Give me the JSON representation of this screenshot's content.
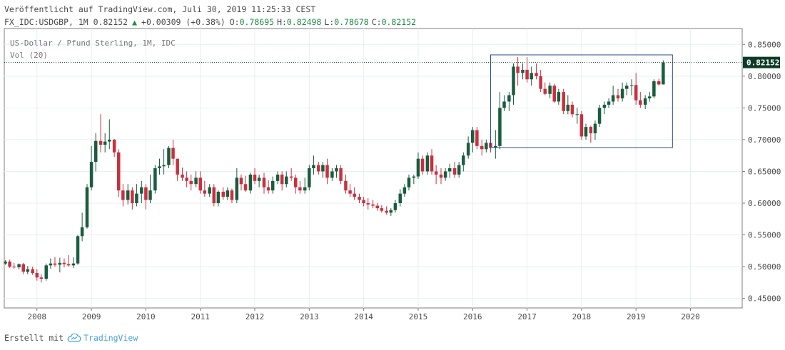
{
  "header": {
    "published": "Veröffentlicht auf TradingView.com, Juli 30, 2019 11:25:33 CEST",
    "symbol_line": "FX_IDC:USDGBP, 1M 0.82152",
    "change": "+0.00309 (+0.38%)",
    "change_direction": "up",
    "o_label": "O:",
    "o_value": "0.78695",
    "h_label": "H:",
    "h_value": "0.82498",
    "l_label": "L:",
    "l_value": "0.78678",
    "c_label": "C:",
    "c_value": "0.82152"
  },
  "legend": {
    "series_title": "US-Dollar / Pfund Sterling, 1M, IDC",
    "volume": "Vol (20)"
  },
  "footer": {
    "created_with": "Erstellt mit",
    "brand": "TradingView",
    "brand_icon": "tradingview-cloud-icon"
  },
  "colors": {
    "up": "#1a5c3f",
    "down": "#c9303d",
    "grid": "#e8eef3",
    "axis": "#4a4a4a",
    "last_price_bg": "#0d3b2a",
    "box": "#2a4c8f"
  },
  "chart_data": {
    "type": "candlestick",
    "interval": "1M",
    "y_ticks": [
      "0.85000",
      "0.80000",
      "0.75000",
      "0.70000",
      "0.65000",
      "0.60000",
      "0.55000",
      "0.50000",
      "0.45000"
    ],
    "x_ticks": [
      "2008",
      "2009",
      "2010",
      "2011",
      "2012",
      "2013",
      "2014",
      "2015",
      "2016",
      "2017",
      "2018",
      "2019",
      "2020"
    ],
    "ylim": [
      0.435,
      0.875
    ],
    "last_price": "0.82152",
    "grid": true,
    "annotation_box": {
      "x_start": 2016.33,
      "x_end": 2019.67,
      "y_low": 0.6875,
      "y_high": 0.8335
    },
    "candles": [
      [
        2007.42,
        0.505,
        0.51,
        0.503,
        0.508
      ],
      [
        2007.5,
        0.508,
        0.511,
        0.498,
        0.5
      ],
      [
        2007.58,
        0.5,
        0.506,
        0.497,
        0.499
      ],
      [
        2007.67,
        0.499,
        0.505,
        0.496,
        0.504
      ],
      [
        2007.75,
        0.504,
        0.506,
        0.488,
        0.492
      ],
      [
        2007.83,
        0.492,
        0.501,
        0.488,
        0.496
      ],
      [
        2007.92,
        0.496,
        0.5,
        0.487,
        0.49
      ],
      [
        2008.0,
        0.49,
        0.496,
        0.478,
        0.483
      ],
      [
        2008.08,
        0.483,
        0.488,
        0.475,
        0.481
      ],
      [
        2008.17,
        0.481,
        0.505,
        0.478,
        0.502
      ],
      [
        2008.25,
        0.502,
        0.513,
        0.497,
        0.505
      ],
      [
        2008.33,
        0.505,
        0.515,
        0.5,
        0.503
      ],
      [
        2008.42,
        0.503,
        0.514,
        0.491,
        0.506
      ],
      [
        2008.5,
        0.506,
        0.513,
        0.499,
        0.504
      ],
      [
        2008.58,
        0.504,
        0.518,
        0.5,
        0.502
      ],
      [
        2008.67,
        0.502,
        0.515,
        0.498,
        0.505
      ],
      [
        2008.75,
        0.505,
        0.55,
        0.503,
        0.548
      ],
      [
        2008.83,
        0.548,
        0.585,
        0.54,
        0.562
      ],
      [
        2008.92,
        0.562,
        0.63,
        0.56,
        0.625
      ],
      [
        2009.0,
        0.625,
        0.69,
        0.62,
        0.665
      ],
      [
        2009.08,
        0.665,
        0.71,
        0.65,
        0.698
      ],
      [
        2009.17,
        0.698,
        0.74,
        0.68,
        0.692
      ],
      [
        2009.25,
        0.692,
        0.71,
        0.68,
        0.697
      ],
      [
        2009.33,
        0.697,
        0.732,
        0.685,
        0.7
      ],
      [
        2009.42,
        0.7,
        0.701,
        0.673,
        0.68
      ],
      [
        2009.5,
        0.68,
        0.685,
        0.61,
        0.62
      ],
      [
        2009.58,
        0.62,
        0.63,
        0.595,
        0.605
      ],
      [
        2009.67,
        0.605,
        0.63,
        0.598,
        0.62
      ],
      [
        2009.75,
        0.62,
        0.625,
        0.59,
        0.6
      ],
      [
        2009.83,
        0.6,
        0.63,
        0.595,
        0.615
      ],
      [
        2009.92,
        0.615,
        0.635,
        0.6,
        0.625
      ],
      [
        2010.0,
        0.625,
        0.63,
        0.59,
        0.605
      ],
      [
        2010.08,
        0.605,
        0.645,
        0.6,
        0.62
      ],
      [
        2010.17,
        0.62,
        0.66,
        0.615,
        0.655
      ],
      [
        2010.25,
        0.655,
        0.67,
        0.645,
        0.658
      ],
      [
        2010.33,
        0.658,
        0.685,
        0.645,
        0.66
      ],
      [
        2010.42,
        0.66,
        0.69,
        0.655,
        0.687
      ],
      [
        2010.5,
        0.687,
        0.7,
        0.66,
        0.67
      ],
      [
        2010.58,
        0.67,
        0.67,
        0.635,
        0.645
      ],
      [
        2010.67,
        0.645,
        0.656,
        0.635,
        0.64
      ],
      [
        2010.75,
        0.64,
        0.65,
        0.625,
        0.635
      ],
      [
        2010.83,
        0.635,
        0.645,
        0.62,
        0.63
      ],
      [
        2010.92,
        0.63,
        0.65,
        0.625,
        0.64
      ],
      [
        2011.0,
        0.64,
        0.65,
        0.615,
        0.62
      ],
      [
        2011.08,
        0.62,
        0.635,
        0.61,
        0.615
      ],
      [
        2011.17,
        0.615,
        0.63,
        0.61,
        0.625
      ],
      [
        2011.25,
        0.625,
        0.63,
        0.595,
        0.6
      ],
      [
        2011.33,
        0.6,
        0.62,
        0.595,
        0.618
      ],
      [
        2011.42,
        0.618,
        0.625,
        0.605,
        0.61
      ],
      [
        2011.5,
        0.61,
        0.625,
        0.605,
        0.62
      ],
      [
        2011.58,
        0.62,
        0.623,
        0.6,
        0.605
      ],
      [
        2011.67,
        0.605,
        0.655,
        0.6,
        0.64
      ],
      [
        2011.75,
        0.64,
        0.645,
        0.62,
        0.63
      ],
      [
        2011.83,
        0.63,
        0.643,
        0.618,
        0.62
      ],
      [
        2011.92,
        0.62,
        0.648,
        0.615,
        0.645
      ],
      [
        2012.0,
        0.645,
        0.655,
        0.63,
        0.635
      ],
      [
        2012.08,
        0.635,
        0.645,
        0.625,
        0.64
      ],
      [
        2012.17,
        0.64,
        0.648,
        0.615,
        0.625
      ],
      [
        2012.25,
        0.625,
        0.636,
        0.615,
        0.62
      ],
      [
        2012.33,
        0.62,
        0.642,
        0.615,
        0.635
      ],
      [
        2012.42,
        0.635,
        0.65,
        0.63,
        0.645
      ],
      [
        2012.5,
        0.645,
        0.65,
        0.62,
        0.63
      ],
      [
        2012.58,
        0.63,
        0.65,
        0.625,
        0.642
      ],
      [
        2012.67,
        0.642,
        0.655,
        0.635,
        0.64
      ],
      [
        2012.75,
        0.64,
        0.645,
        0.615,
        0.625
      ],
      [
        2012.83,
        0.625,
        0.635,
        0.615,
        0.62
      ],
      [
        2012.92,
        0.62,
        0.64,
        0.615,
        0.625
      ],
      [
        2013.0,
        0.625,
        0.66,
        0.62,
        0.655
      ],
      [
        2013.08,
        0.655,
        0.675,
        0.645,
        0.66
      ],
      [
        2013.17,
        0.66,
        0.665,
        0.645,
        0.65
      ],
      [
        2013.25,
        0.65,
        0.665,
        0.64,
        0.66
      ],
      [
        2013.33,
        0.66,
        0.67,
        0.63,
        0.64
      ],
      [
        2013.42,
        0.64,
        0.655,
        0.635,
        0.65
      ],
      [
        2013.5,
        0.65,
        0.66,
        0.64,
        0.655
      ],
      [
        2013.58,
        0.655,
        0.66,
        0.63,
        0.635
      ],
      [
        2013.67,
        0.635,
        0.645,
        0.615,
        0.62
      ],
      [
        2013.75,
        0.62,
        0.63,
        0.61,
        0.615
      ],
      [
        2013.83,
        0.615,
        0.625,
        0.605,
        0.61
      ],
      [
        2013.92,
        0.61,
        0.615,
        0.6,
        0.605
      ],
      [
        2014.0,
        0.605,
        0.61,
        0.595,
        0.6
      ],
      [
        2014.08,
        0.6,
        0.608,
        0.59,
        0.598
      ],
      [
        2014.17,
        0.598,
        0.605,
        0.592,
        0.596
      ],
      [
        2014.25,
        0.596,
        0.6,
        0.588,
        0.592
      ],
      [
        2014.33,
        0.592,
        0.597,
        0.585,
        0.588
      ],
      [
        2014.42,
        0.588,
        0.595,
        0.582,
        0.585
      ],
      [
        2014.5,
        0.585,
        0.592,
        0.58,
        0.589
      ],
      [
        2014.58,
        0.589,
        0.605,
        0.585,
        0.6
      ],
      [
        2014.67,
        0.6,
        0.622,
        0.595,
        0.615
      ],
      [
        2014.75,
        0.615,
        0.63,
        0.61,
        0.625
      ],
      [
        2014.83,
        0.625,
        0.645,
        0.62,
        0.64
      ],
      [
        2014.92,
        0.64,
        0.645,
        0.63,
        0.642
      ],
      [
        2015.0,
        0.642,
        0.68,
        0.638,
        0.67
      ],
      [
        2015.08,
        0.67,
        0.675,
        0.645,
        0.65
      ],
      [
        2015.17,
        0.65,
        0.68,
        0.645,
        0.675
      ],
      [
        2015.25,
        0.675,
        0.685,
        0.645,
        0.65
      ],
      [
        2015.33,
        0.65,
        0.66,
        0.63,
        0.645
      ],
      [
        2015.42,
        0.645,
        0.655,
        0.63,
        0.64
      ],
      [
        2015.5,
        0.64,
        0.655,
        0.635,
        0.65
      ],
      [
        2015.58,
        0.65,
        0.662,
        0.64,
        0.655
      ],
      [
        2015.67,
        0.655,
        0.665,
        0.64,
        0.645
      ],
      [
        2015.75,
        0.645,
        0.665,
        0.64,
        0.66
      ],
      [
        2015.83,
        0.66,
        0.68,
        0.65,
        0.675
      ],
      [
        2015.92,
        0.675,
        0.705,
        0.67,
        0.695
      ],
      [
        2016.0,
        0.695,
        0.72,
        0.68,
        0.715
      ],
      [
        2016.08,
        0.715,
        0.72,
        0.685,
        0.69
      ],
      [
        2016.17,
        0.69,
        0.7,
        0.675,
        0.685
      ],
      [
        2016.25,
        0.685,
        0.7,
        0.68,
        0.695
      ],
      [
        2016.33,
        0.695,
        0.708,
        0.68,
        0.687
      ],
      [
        2016.42,
        0.687,
        0.715,
        0.67,
        0.69
      ],
      [
        2016.5,
        0.69,
        0.775,
        0.685,
        0.75
      ],
      [
        2016.58,
        0.75,
        0.77,
        0.745,
        0.76
      ],
      [
        2016.67,
        0.76,
        0.775,
        0.745,
        0.77
      ],
      [
        2016.75,
        0.77,
        0.82,
        0.755,
        0.815
      ],
      [
        2016.83,
        0.815,
        0.83,
        0.785,
        0.805
      ],
      [
        2016.92,
        0.805,
        0.82,
        0.795,
        0.81
      ],
      [
        2017.0,
        0.81,
        0.83,
        0.79,
        0.795
      ],
      [
        2017.08,
        0.795,
        0.815,
        0.785,
        0.805
      ],
      [
        2017.17,
        0.805,
        0.82,
        0.795,
        0.8
      ],
      [
        2017.25,
        0.8,
        0.81,
        0.775,
        0.78
      ],
      [
        2017.33,
        0.78,
        0.79,
        0.77,
        0.772
      ],
      [
        2017.42,
        0.772,
        0.79,
        0.765,
        0.785
      ],
      [
        2017.5,
        0.785,
        0.788,
        0.758,
        0.76
      ],
      [
        2017.58,
        0.76,
        0.78,
        0.755,
        0.775
      ],
      [
        2017.67,
        0.775,
        0.78,
        0.74,
        0.745
      ],
      [
        2017.75,
        0.745,
        0.77,
        0.74,
        0.755
      ],
      [
        2017.83,
        0.755,
        0.76,
        0.735,
        0.74
      ],
      [
        2017.92,
        0.74,
        0.75,
        0.725,
        0.74
      ],
      [
        2018.0,
        0.74,
        0.745,
        0.7,
        0.705
      ],
      [
        2018.08,
        0.705,
        0.725,
        0.7,
        0.72
      ],
      [
        2018.17,
        0.72,
        0.722,
        0.695,
        0.71
      ],
      [
        2018.25,
        0.71,
        0.73,
        0.7,
        0.725
      ],
      [
        2018.33,
        0.725,
        0.755,
        0.72,
        0.75
      ],
      [
        2018.42,
        0.75,
        0.76,
        0.74,
        0.755
      ],
      [
        2018.5,
        0.755,
        0.765,
        0.75,
        0.76
      ],
      [
        2018.58,
        0.76,
        0.785,
        0.755,
        0.77
      ],
      [
        2018.67,
        0.77,
        0.78,
        0.76,
        0.765
      ],
      [
        2018.75,
        0.765,
        0.79,
        0.76,
        0.78
      ],
      [
        2018.83,
        0.78,
        0.79,
        0.77,
        0.785
      ],
      [
        2018.92,
        0.785,
        0.795,
        0.77,
        0.786
      ],
      [
        2019.0,
        0.786,
        0.805,
        0.755,
        0.762
      ],
      [
        2019.08,
        0.762,
        0.775,
        0.75,
        0.755
      ],
      [
        2019.17,
        0.755,
        0.77,
        0.748,
        0.765
      ],
      [
        2019.25,
        0.765,
        0.775,
        0.76,
        0.768
      ],
      [
        2019.33,
        0.768,
        0.795,
        0.765,
        0.792
      ],
      [
        2019.42,
        0.792,
        0.796,
        0.785,
        0.787
      ],
      [
        2019.5,
        0.787,
        0.825,
        0.7868,
        0.8215
      ]
    ]
  }
}
